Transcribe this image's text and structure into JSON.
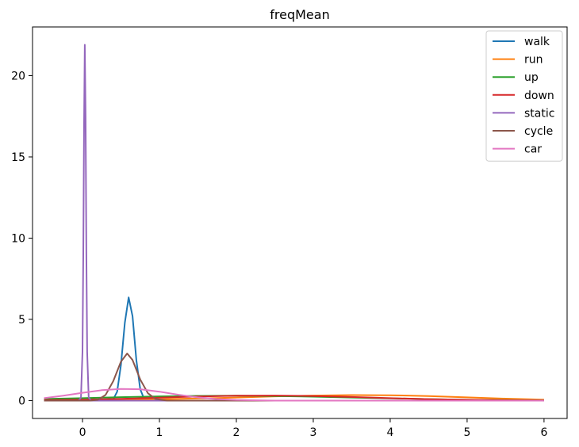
{
  "chart_data": {
    "type": "line",
    "title": "freqMean",
    "xlabel": "",
    "ylabel": "",
    "xlim": [
      -0.65,
      6.3
    ],
    "ylim": [
      -1.1,
      23.0
    ],
    "xticks": [
      0,
      1,
      2,
      3,
      4,
      5,
      6
    ],
    "yticks": [
      0,
      5,
      10,
      15,
      20
    ],
    "grid": false,
    "legend_position": "top-right",
    "series": [
      {
        "name": "walk",
        "color": "#1f77b4",
        "x": [
          -0.5,
          0.3,
          0.4,
          0.45,
          0.5,
          0.55,
          0.6,
          0.65,
          0.7,
          0.75,
          0.8,
          0.9,
          1.0,
          6.0
        ],
        "y": [
          0,
          0,
          0.08,
          0.55,
          2.2,
          4.8,
          6.35,
          5.2,
          2.5,
          0.7,
          0.12,
          0,
          0,
          0
        ]
      },
      {
        "name": "run",
        "color": "#ff7f0e",
        "x": [
          -0.5,
          0,
          0.5,
          1,
          1.5,
          2,
          2.5,
          3,
          3.5,
          4,
          4.5,
          5,
          5.5,
          6
        ],
        "y": [
          0.02,
          0.03,
          0.05,
          0.08,
          0.13,
          0.19,
          0.26,
          0.31,
          0.34,
          0.33,
          0.28,
          0.2,
          0.12,
          0.06
        ]
      },
      {
        "name": "up",
        "color": "#2ca02c",
        "x": [
          -0.5,
          0,
          0.5,
          1,
          1.5,
          2,
          2.5,
          3,
          3.5,
          4,
          4.5,
          5,
          5.5,
          6
        ],
        "y": [
          0.1,
          0.15,
          0.21,
          0.26,
          0.29,
          0.3,
          0.28,
          0.24,
          0.19,
          0.14,
          0.09,
          0.05,
          0.03,
          0.01
        ]
      },
      {
        "name": "down",
        "color": "#d62728",
        "x": [
          -0.5,
          0,
          0.5,
          1,
          1.5,
          2,
          2.5,
          3,
          3.5,
          4,
          4.5,
          5,
          5.5,
          6
        ],
        "y": [
          0.03,
          0.06,
          0.11,
          0.18,
          0.25,
          0.3,
          0.31,
          0.28,
          0.22,
          0.15,
          0.09,
          0.05,
          0.02,
          0.01
        ]
      },
      {
        "name": "static",
        "color": "#9467bd",
        "x": [
          -0.5,
          -0.05,
          -0.02,
          0,
          0.01,
          0.02,
          0.03,
          0.04,
          0.05,
          0.06,
          0.08,
          0.11,
          6.0
        ],
        "y": [
          0,
          0,
          0.2,
          3.0,
          9.0,
          17.0,
          21.9,
          17.5,
          9.0,
          3.0,
          0.2,
          0,
          0
        ]
      },
      {
        "name": "cycle",
        "color": "#8c564b",
        "x": [
          -0.5,
          0.1,
          0.2,
          0.3,
          0.4,
          0.5,
          0.58,
          0.65,
          0.75,
          0.85,
          0.95,
          1.1,
          6.0
        ],
        "y": [
          0,
          0,
          0.05,
          0.35,
          1.2,
          2.4,
          2.9,
          2.5,
          1.3,
          0.45,
          0.1,
          0,
          0
        ]
      },
      {
        "name": "car",
        "color": "#e377c2",
        "x": [
          -0.5,
          -0.25,
          0,
          0.25,
          0.5,
          0.75,
          1.0,
          1.25,
          1.5,
          1.75,
          2.0,
          2.5,
          3.0,
          6.0
        ],
        "y": [
          0.15,
          0.3,
          0.48,
          0.64,
          0.72,
          0.7,
          0.55,
          0.36,
          0.2,
          0.09,
          0.04,
          0,
          0,
          0
        ]
      }
    ]
  }
}
